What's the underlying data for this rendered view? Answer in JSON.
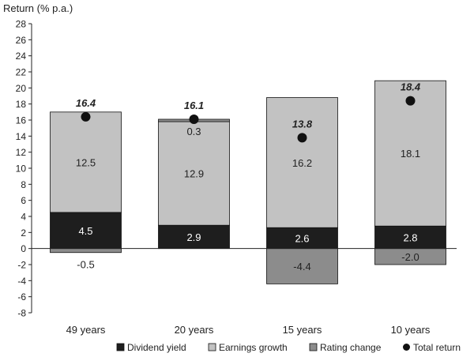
{
  "chart_data": {
    "type": "bar",
    "stacked": true,
    "title": "",
    "ylabel": "Return (% p.a.)",
    "xlabel": "",
    "ylim": [
      -8,
      28
    ],
    "ytick_step": 2,
    "categories": [
      "49 years",
      "20 years",
      "15 years",
      "10 years"
    ],
    "series": [
      {
        "name": "Dividend yield",
        "values": [
          4.5,
          2.9,
          2.6,
          2.8
        ],
        "color": "#1e1e1e",
        "label_color": "#ffffff"
      },
      {
        "name": "Earnings growth",
        "values": [
          12.5,
          12.9,
          16.2,
          18.1
        ],
        "color": "#c2c2c2",
        "label_color": "#222222"
      },
      {
        "name": "Rating change",
        "values": [
          -0.5,
          0.3,
          -4.4,
          -2.0
        ],
        "color": "#8c8c8c",
        "label_color": "#222222"
      }
    ],
    "total_return": {
      "name": "Total return",
      "values": [
        16.4,
        16.1,
        13.8,
        18.4
      ],
      "color": "#111111"
    },
    "legend": {
      "position": "bottom"
    }
  }
}
